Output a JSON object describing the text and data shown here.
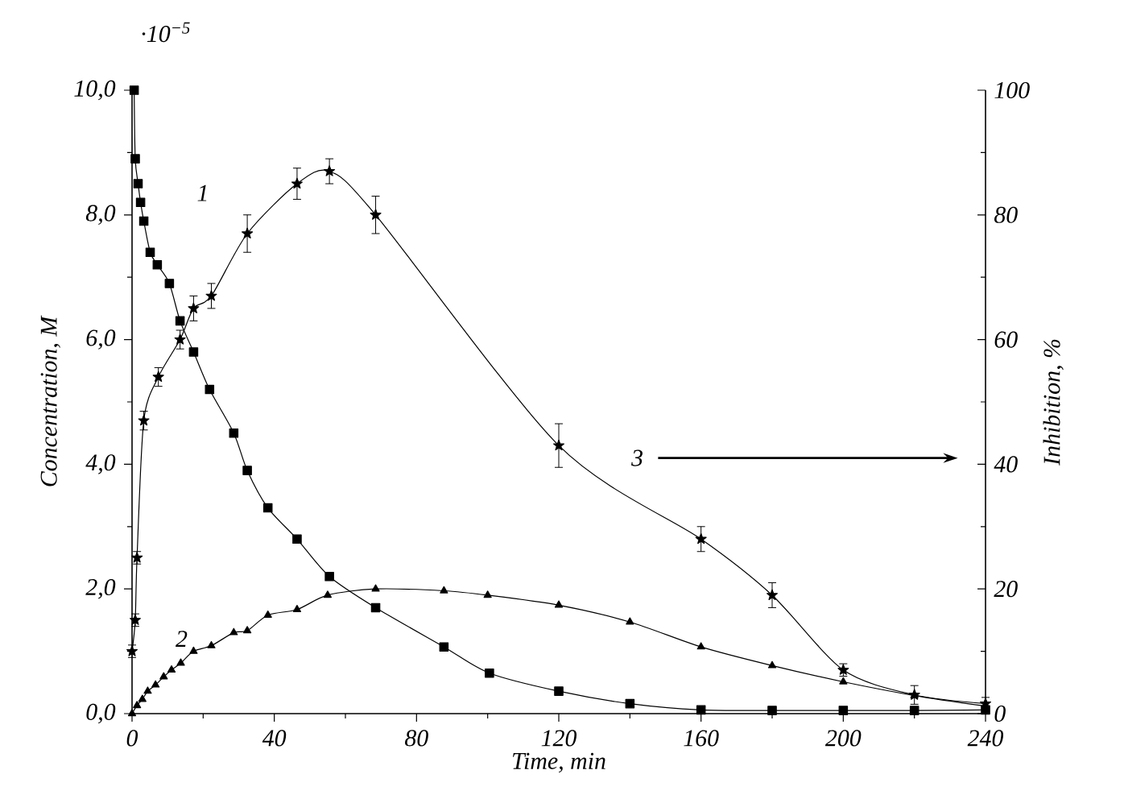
{
  "chart_data": {
    "type": "line",
    "xlabel": "Time, min",
    "ylabel": "Concentration, M",
    "y2label": "Inhibition, %",
    "xlim": [
      0,
      240
    ],
    "xticks": [
      0,
      40,
      80,
      120,
      160,
      200,
      240
    ],
    "ylim": [
      0,
      10
    ],
    "yticks": [
      {
        "value": 0,
        "label": "0,0"
      },
      {
        "value": 2,
        "label": "2,0"
      },
      {
        "value": 4,
        "label": "4,0"
      },
      {
        "value": 6,
        "label": "6,0"
      },
      {
        "value": 8,
        "label": "8,0"
      },
      {
        "value": 10,
        "label": "10,0"
      }
    ],
    "y2lim": [
      0,
      100
    ],
    "y2ticks": [
      0,
      20,
      40,
      60,
      80,
      100
    ],
    "line_style": "solid",
    "series": [
      {
        "color": "#000000",
        "marker": "square",
        "x": [
          0.6,
          0.9,
          1.7,
          2.4,
          3.3,
          5.1,
          7.1,
          10.5,
          13.5,
          17.3,
          21.8,
          28.6,
          32.4,
          38.2,
          46.4,
          55.5,
          68.5,
          87.7,
          100.5,
          120,
          140,
          160,
          180,
          200,
          220,
          240
        ],
        "values": [
          10.0,
          8.9,
          8.5,
          8.2,
          7.9,
          7.4,
          7.2,
          6.9,
          6.3,
          5.8,
          5.2,
          4.5,
          3.9,
          3.3,
          2.8,
          2.2,
          1.7,
          1.07,
          0.65,
          0.36,
          0.16,
          0.06,
          0.05,
          0.05,
          0.05,
          0.06
        ]
      },
      {
        "color": "#000000",
        "marker": "triangle",
        "x": [
          0,
          1.4,
          2.9,
          4.4,
          6.6,
          8.9,
          11.1,
          13.7,
          17.3,
          22.3,
          28.6,
          32.4,
          38.2,
          46.4,
          55,
          68.5,
          87.7,
          100,
          120,
          140,
          160,
          180,
          200,
          220,
          240
        ],
        "values": [
          0,
          0.13,
          0.23,
          0.36,
          0.46,
          0.59,
          0.7,
          0.81,
          1.0,
          1.09,
          1.3,
          1.33,
          1.58,
          1.67,
          1.9,
          2.0,
          1.97,
          1.9,
          1.74,
          1.47,
          1.07,
          0.77,
          0.51,
          0.29,
          0.12
        ]
      },
      {
        "color": "#000000",
        "marker": "star",
        "axis": "y2",
        "x": [
          0,
          0.9,
          1.4,
          3.3,
          7.4,
          13.5,
          17.3,
          22.3,
          32.4,
          46.4,
          55.5,
          68.5,
          120,
          160,
          180,
          200,
          220,
          240
        ],
        "values": [
          10,
          15,
          25,
          47,
          54,
          60,
          65,
          67,
          77,
          85,
          87,
          80,
          43,
          28,
          19,
          7,
          3,
          1.6
        ],
        "errors": [
          1,
          1,
          1,
          1.5,
          1.5,
          1.5,
          2,
          2,
          3,
          2.5,
          2,
          3,
          3.5,
          2,
          2,
          1,
          1.5,
          1
        ]
      }
    ],
    "annotations": [
      "·10$^{−5}$",
      "1",
      "2",
      "3"
    ]
  }
}
